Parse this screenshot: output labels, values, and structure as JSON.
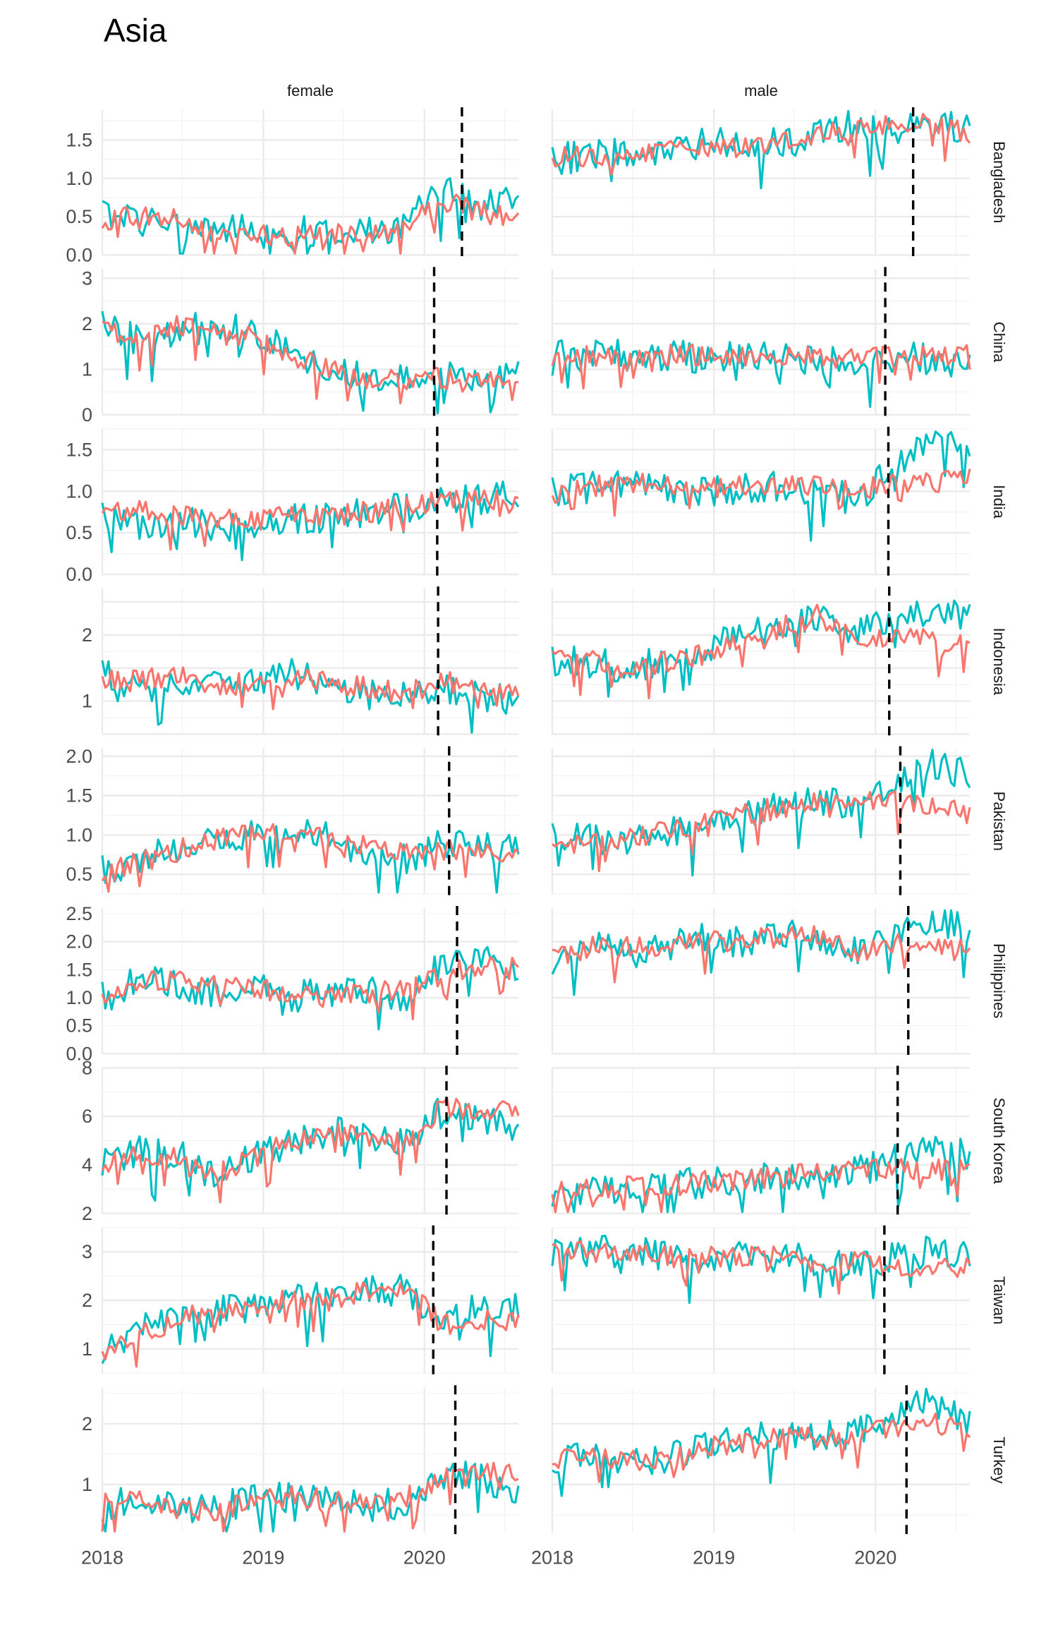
{
  "chart_data": {
    "type": "line",
    "title": "Asia",
    "facet_columns": [
      "female",
      "male"
    ],
    "facet_rows": [
      "Bangladesh",
      "China",
      "India",
      "Indonesia",
      "Pakistan",
      "Philippines",
      "South Korea",
      "Taiwan",
      "Turkey"
    ],
    "x_tick_labels": [
      "2018",
      "2019",
      "2020"
    ],
    "xlim": [
      "2018-01-01",
      "2020-08-01"
    ],
    "grid": true,
    "legend": "none",
    "series_colors": {
      "teal": "#00BFC4",
      "salmon": "#F8766D"
    },
    "panels": [
      {
        "row": "Bangladesh",
        "col": "female",
        "ylim": [
          0.0,
          1.9
        ],
        "yticks": [
          "0.0",
          "0.5",
          "1.0",
          "1.5"
        ],
        "event": "2020-03-26",
        "teal_level": [
          0.55,
          0.45,
          0.4,
          0.35,
          0.3,
          0.3,
          0.35,
          0.3,
          0.4,
          0.85,
          0.6,
          0.75
        ],
        "salmon_level": [
          0.4,
          0.55,
          0.45,
          0.3,
          0.25,
          0.25,
          0.25,
          0.3,
          0.35,
          0.7,
          0.55,
          0.45
        ]
      },
      {
        "row": "Bangladesh",
        "col": "male",
        "ylim": [
          0.0,
          1.9
        ],
        "yticks": [],
        "event": "2020-03-26",
        "teal_level": [
          1.25,
          1.3,
          1.35,
          1.35,
          1.45,
          1.5,
          1.45,
          1.55,
          1.7,
          1.6,
          1.7,
          1.65
        ],
        "salmon_level": [
          1.25,
          1.3,
          1.3,
          1.4,
          1.4,
          1.4,
          1.5,
          1.55,
          1.65,
          1.7,
          1.7,
          1.6
        ]
      },
      {
        "row": "China",
        "col": "female",
        "ylim": [
          0.0,
          3.2
        ],
        "yticks": [
          "0",
          "1",
          "2",
          "3"
        ],
        "event": "2020-01-23",
        "teal_level": [
          2.0,
          1.6,
          1.9,
          1.9,
          1.8,
          1.3,
          1.0,
          0.8,
          0.8,
          0.8,
          0.8,
          0.9
        ],
        "salmon_level": [
          1.9,
          1.7,
          2.0,
          1.8,
          1.7,
          1.3,
          1.0,
          0.8,
          0.8,
          0.8,
          0.7,
          0.9
        ]
      },
      {
        "row": "China",
        "col": "male",
        "ylim": [
          0.0,
          3.2
        ],
        "yticks": [],
        "event": "2020-01-23",
        "teal_level": [
          1.35,
          1.3,
          1.3,
          1.3,
          1.25,
          1.3,
          1.25,
          1.25,
          1.2,
          1.3,
          1.2,
          1.0
        ],
        "salmon_level": [
          1.3,
          1.3,
          1.3,
          1.3,
          1.3,
          1.3,
          1.25,
          1.25,
          1.25,
          1.3,
          1.3,
          1.3
        ]
      },
      {
        "row": "India",
        "col": "female",
        "ylim": [
          0.0,
          1.75
        ],
        "yticks": [
          "0.0",
          "0.5",
          "1.0",
          "1.5"
        ],
        "event": "2020-01-30",
        "teal_level": [
          0.7,
          0.6,
          0.65,
          0.55,
          0.6,
          0.65,
          0.7,
          0.75,
          0.8,
          0.85,
          0.9,
          0.95
        ],
        "salmon_level": [
          0.8,
          0.75,
          0.7,
          0.65,
          0.65,
          0.7,
          0.7,
          0.75,
          0.8,
          0.9,
          0.9,
          0.85
        ]
      },
      {
        "row": "India",
        "col": "male",
        "ylim": [
          0.0,
          1.75
        ],
        "yticks": [],
        "event": "2020-01-30",
        "teal_level": [
          1.0,
          1.05,
          1.1,
          1.05,
          1.0,
          1.05,
          1.05,
          1.0,
          0.9,
          1.3,
          1.55,
          1.6
        ],
        "salmon_level": [
          0.95,
          1.05,
          1.1,
          1.05,
          1.05,
          1.05,
          1.1,
          1.05,
          1.0,
          1.1,
          1.1,
          1.15
        ]
      },
      {
        "row": "Indonesia",
        "col": "female",
        "ylim": [
          0.5,
          2.7
        ],
        "yticks": [
          "1",
          "2"
        ],
        "event": "2020-02-01",
        "teal_level": [
          1.4,
          1.2,
          1.3,
          1.2,
          1.3,
          1.4,
          1.3,
          1.1,
          1.1,
          1.2,
          1.1,
          1.0
        ],
        "salmon_level": [
          1.3,
          1.3,
          1.4,
          1.2,
          1.3,
          1.4,
          1.3,
          1.2,
          1.1,
          1.3,
          1.2,
          1.2
        ]
      },
      {
        "row": "Indonesia",
        "col": "male",
        "ylim": [
          0.5,
          2.7
        ],
        "yticks": [],
        "event": "2020-02-01",
        "teal_level": [
          1.6,
          1.6,
          1.5,
          1.6,
          1.8,
          2.0,
          2.1,
          2.3,
          2.0,
          2.2,
          2.4,
          2.3
        ],
        "salmon_level": [
          1.6,
          1.6,
          1.5,
          1.6,
          1.7,
          1.9,
          2.1,
          2.3,
          1.9,
          2.0,
          1.9,
          1.85
        ]
      },
      {
        "row": "Pakistan",
        "col": "female",
        "ylim": [
          0.25,
          2.1
        ],
        "yticks": [
          "0.5",
          "1.0",
          "1.5",
          "2.0"
        ],
        "event": "2020-02-26",
        "teal_level": [
          0.55,
          0.7,
          0.85,
          0.95,
          1.0,
          1.1,
          0.95,
          0.8,
          0.7,
          0.9,
          0.85,
          0.8
        ],
        "salmon_level": [
          0.5,
          0.65,
          0.8,
          0.95,
          1.0,
          1.05,
          0.95,
          0.85,
          0.75,
          0.8,
          0.8,
          0.75
        ]
      },
      {
        "row": "Pakistan",
        "col": "male",
        "ylim": [
          0.25,
          2.1
        ],
        "yticks": [],
        "event": "2020-02-26",
        "teal_level": [
          0.95,
          0.95,
          0.95,
          1.05,
          1.15,
          1.3,
          1.35,
          1.45,
          1.4,
          1.6,
          1.9,
          1.75
        ],
        "salmon_level": [
          0.9,
          0.9,
          0.95,
          1.05,
          1.15,
          1.25,
          1.35,
          1.4,
          1.4,
          1.45,
          1.4,
          1.35
        ]
      },
      {
        "row": "Philippines",
        "col": "female",
        "ylim": [
          0.0,
          2.6
        ],
        "yticks": [
          "0.0",
          "0.5",
          "1.0",
          "1.5",
          "2.0",
          "2.5"
        ],
        "event": "2020-03-15",
        "teal_level": [
          1.0,
          1.3,
          1.2,
          1.1,
          1.2,
          1.0,
          1.1,
          1.1,
          1.0,
          1.6,
          1.8,
          1.5
        ],
        "salmon_level": [
          1.0,
          1.3,
          1.3,
          1.2,
          1.2,
          1.0,
          1.1,
          1.1,
          1.1,
          1.4,
          1.6,
          1.5
        ]
      },
      {
        "row": "Philippines",
        "col": "male",
        "ylim": [
          0.0,
          2.6
        ],
        "yticks": [],
        "event": "2020-03-15",
        "teal_level": [
          1.7,
          1.9,
          1.8,
          1.9,
          2.1,
          2.0,
          2.1,
          2.1,
          1.8,
          2.2,
          2.4,
          2.2
        ],
        "salmon_level": [
          1.7,
          1.9,
          1.9,
          1.9,
          2.0,
          2.0,
          2.1,
          2.1,
          1.8,
          2.0,
          1.9,
          1.95
        ]
      },
      {
        "row": "South Korea",
        "col": "female",
        "ylim": [
          2.0,
          8.0
        ],
        "yticks": [
          "2",
          "4",
          "6",
          "8"
        ],
        "event": "2020-02-20",
        "teal_level": [
          4.2,
          4.6,
          4.4,
          3.5,
          4.3,
          5.0,
          5.4,
          5.2,
          4.8,
          6.4,
          6.0,
          5.5
        ],
        "salmon_level": [
          4.1,
          4.4,
          4.3,
          3.6,
          4.3,
          5.0,
          5.3,
          5.1,
          4.9,
          6.4,
          6.3,
          6.2
        ]
      },
      {
        "row": "South Korea",
        "col": "male",
        "ylim": [
          2.0,
          8.0
        ],
        "yticks": [],
        "event": "2020-02-20",
        "teal_level": [
          2.9,
          3.0,
          3.1,
          3.1,
          3.3,
          3.4,
          3.5,
          3.8,
          3.7,
          4.3,
          4.6,
          4.4
        ],
        "salmon_level": [
          2.9,
          3.0,
          3.1,
          3.1,
          3.3,
          3.4,
          3.5,
          3.7,
          3.8,
          3.9,
          3.8,
          3.9
        ]
      },
      {
        "row": "Taiwan",
        "col": "female",
        "ylim": [
          0.5,
          3.5
        ],
        "yticks": [
          "1",
          "2",
          "3"
        ],
        "event": "2020-01-21",
        "teal_level": [
          1.0,
          1.4,
          1.7,
          1.8,
          1.9,
          2.0,
          2.1,
          2.2,
          2.2,
          1.6,
          1.9,
          1.9
        ],
        "salmon_level": [
          0.9,
          1.3,
          1.6,
          1.8,
          1.9,
          2.0,
          2.0,
          2.2,
          2.3,
          1.5,
          1.6,
          1.6
        ]
      },
      {
        "row": "Taiwan",
        "col": "male",
        "ylim": [
          0.5,
          3.5
        ],
        "yticks": [],
        "event": "2020-01-21",
        "teal_level": [
          3.0,
          3.0,
          3.0,
          2.9,
          2.9,
          2.9,
          2.9,
          2.8,
          2.7,
          2.9,
          3.0,
          2.9
        ],
        "salmon_level": [
          3.0,
          3.0,
          3.0,
          2.9,
          2.9,
          2.9,
          2.9,
          2.8,
          2.8,
          2.7,
          2.7,
          2.7
        ]
      },
      {
        "row": "Turkey",
        "col": "female",
        "ylim": [
          0.2,
          2.6
        ],
        "yticks": [
          "1",
          "2"
        ],
        "event": "2020-03-11",
        "teal_level": [
          0.65,
          0.75,
          0.6,
          0.55,
          0.8,
          0.8,
          0.75,
          0.65,
          0.7,
          1.2,
          1.1,
          0.9
        ],
        "salmon_level": [
          0.7,
          0.8,
          0.6,
          0.55,
          0.75,
          0.8,
          0.75,
          0.65,
          0.75,
          1.15,
          1.15,
          1.25
        ]
      },
      {
        "row": "Turkey",
        "col": "male",
        "ylim": [
          0.2,
          2.6
        ],
        "yticks": [],
        "event": "2020-03-11",
        "teal_level": [
          1.45,
          1.5,
          1.4,
          1.4,
          1.65,
          1.75,
          1.8,
          1.8,
          1.85,
          2.1,
          2.4,
          2.0
        ],
        "salmon_level": [
          1.4,
          1.5,
          1.4,
          1.4,
          1.6,
          1.7,
          1.75,
          1.8,
          1.85,
          1.95,
          2.0,
          1.95
        ]
      }
    ]
  }
}
